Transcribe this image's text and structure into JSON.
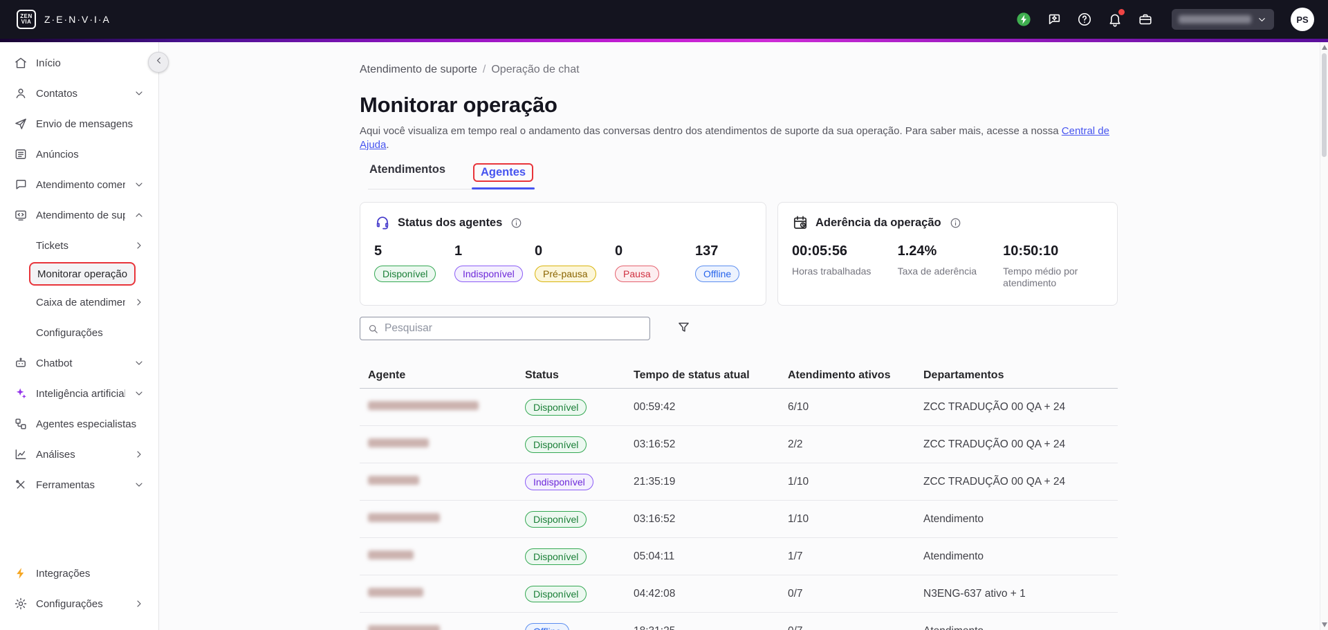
{
  "colors": {
    "accent_blue": "#4654f0",
    "annotation_red": "#e8343a",
    "status_green": "#1a7f37",
    "status_purple": "#6d28d9",
    "status_yellow": "#8a6400",
    "status_red": "#d03040",
    "status_blue": "#2563eb",
    "notification_dot": "#ef4444",
    "health_green": "#3fae4f"
  },
  "topbar": {
    "logo_line1": "ZEN",
    "logo_line2": "VIA",
    "brand": "Z·E·N·V·I·A",
    "avatar_initials": "PS",
    "icons": [
      "health-status-icon",
      "feedback-icon",
      "help-icon",
      "notifications-icon",
      "workspace-icon"
    ],
    "organization_dropdown_redacted": true
  },
  "sidebar": {
    "items": [
      {
        "id": "inicio",
        "label": "Início",
        "icon": "home"
      },
      {
        "id": "contatos",
        "label": "Contatos",
        "icon": "contacts",
        "chevron": "down"
      },
      {
        "id": "envio-de-mensagens",
        "label": "Envio de mensagens",
        "icon": "send"
      },
      {
        "id": "anuncios",
        "label": "Anúncios",
        "icon": "news"
      },
      {
        "id": "atendimento-comercial",
        "label": "Atendimento comercial",
        "icon": "chat",
        "chevron": "down"
      },
      {
        "id": "atendimento-de-suporte",
        "label": "Atendimento de suporte",
        "icon": "support",
        "chevron": "up",
        "children": [
          {
            "id": "tickets",
            "label": "Tickets",
            "chevron": "right"
          },
          {
            "id": "monitorar-operacao",
            "label": "Monitorar operação",
            "active": true,
            "annotated": true
          },
          {
            "id": "caixa-de-atendimento",
            "label": "Caixa de atendimento",
            "chevron": "right"
          },
          {
            "id": "configuracoes-suporte",
            "label": "Configurações"
          }
        ]
      },
      {
        "id": "chatbot",
        "label": "Chatbot",
        "icon": "bot",
        "chevron": "down"
      },
      {
        "id": "inteligencia-artificial",
        "label": "Inteligência artificial",
        "icon": "sparkles",
        "chevron": "down"
      },
      {
        "id": "agentes-especialistas",
        "label": "Agentes especialistas",
        "icon": "agents"
      },
      {
        "id": "analises",
        "label": "Análises",
        "icon": "chart",
        "chevron": "right"
      },
      {
        "id": "ferramentas",
        "label": "Ferramentas",
        "icon": "tools",
        "chevron": "down"
      }
    ],
    "footer_items": [
      {
        "id": "integracoes",
        "label": "Integrações",
        "icon": "bolt"
      },
      {
        "id": "configuracoes",
        "label": "Configurações",
        "icon": "gear",
        "chevron": "right"
      }
    ]
  },
  "main": {
    "breadcrumb": {
      "parent": "Atendimento de suporte",
      "separator": "/",
      "current": "Operação de chat"
    },
    "title": "Monitorar operação",
    "description": "Aqui você visualiza em tempo real o andamento das conversas dentro dos atendimentos de suporte da sua operação. Para saber mais, acesse a nossa ",
    "description_link": "Central de Ajuda",
    "description_suffix": ".",
    "tabs": [
      {
        "id": "atendimentos",
        "label": "Atendimentos",
        "active": false
      },
      {
        "id": "agentes",
        "label": "Agentes",
        "active": true,
        "annotated": true
      }
    ],
    "status_card": {
      "title": "Status dos agentes",
      "stats": [
        {
          "value": "5",
          "label": "Disponível",
          "variant": "green"
        },
        {
          "value": "1",
          "label": "Indisponível",
          "variant": "purple"
        },
        {
          "value": "0",
          "label": "Pré-pausa",
          "variant": "yellow"
        },
        {
          "value": "0",
          "label": "Pausa",
          "variant": "red"
        },
        {
          "value": "137",
          "label": "Offline",
          "variant": "blue"
        }
      ]
    },
    "adherence_card": {
      "title": "Aderência da operação",
      "stats": [
        {
          "value": "00:05:56",
          "label": "Horas trabalhadas"
        },
        {
          "value": "1.24%",
          "label": "Taxa de aderência"
        },
        {
          "value": "10:50:10",
          "label": "Tempo médio por atendimento"
        }
      ]
    },
    "search": {
      "placeholder": "Pesquisar"
    },
    "table": {
      "columns": [
        "Agente",
        "Status",
        "Tempo de status atual",
        "Atendimento ativos",
        "Departamentos"
      ],
      "rows": [
        {
          "name_redacted": true,
          "name_width": 160,
          "status": "Disponível",
          "variant": "green",
          "status_time": "00:59:42",
          "active_chats": "6/10",
          "departments": "ZCC TRADUÇÃO 00 QA + 24"
        },
        {
          "name_redacted": true,
          "name_width": 88,
          "status": "Disponível",
          "variant": "green",
          "status_time": "03:16:52",
          "active_chats": "2/2",
          "departments": "ZCC TRADUÇÃO 00 QA + 24"
        },
        {
          "name_redacted": true,
          "name_width": 74,
          "status": "Indisponível",
          "variant": "purple",
          "status_time": "21:35:19",
          "active_chats": "1/10",
          "departments": "ZCC TRADUÇÃO 00 QA + 24"
        },
        {
          "name_redacted": true,
          "name_width": 104,
          "status": "Disponível",
          "variant": "green",
          "status_time": "03:16:52",
          "active_chats": "1/10",
          "departments": "Atendimento"
        },
        {
          "name_redacted": true,
          "name_width": 66,
          "status": "Disponível",
          "variant": "green",
          "status_time": "05:04:11",
          "active_chats": "1/7",
          "departments": "Atendimento"
        },
        {
          "name_redacted": true,
          "name_width": 80,
          "status": "Disponível",
          "variant": "green",
          "status_time": "04:42:08",
          "active_chats": "0/7",
          "departments": "N3ENG-637 ativo + 1"
        },
        {
          "name_redacted": true,
          "name_width": 104,
          "status": "Offline",
          "variant": "blue",
          "status_time": "18:31:25",
          "active_chats": "0/7",
          "departments": "Atendimento"
        }
      ]
    }
  }
}
